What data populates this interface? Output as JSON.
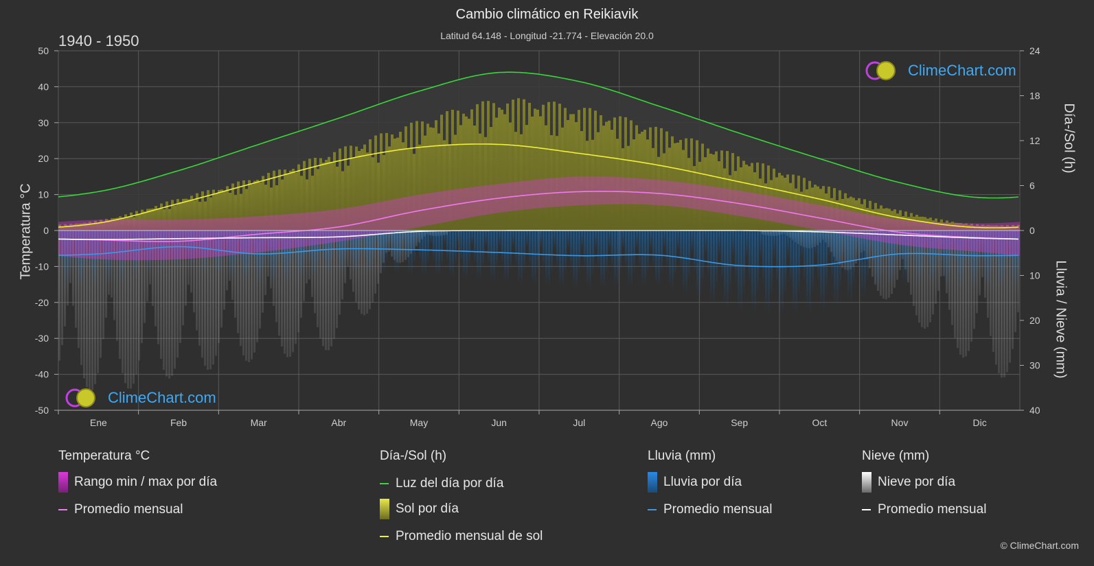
{
  "header": {
    "title": "Cambio climático en Reikiavik",
    "subtitle": "Latitud 64.148 - Longitud -21.774 - Elevación 20.0",
    "period": "1940 - 1950"
  },
  "axes": {
    "left_title": "Temperatura °C",
    "right_top_title": "Día-/Sol (h)",
    "right_bottom_title": "Lluvia / Nieve (mm)"
  },
  "logo": {
    "text": "ClimeChart.com"
  },
  "copyright": "© ClimeChart.com",
  "legend": {
    "temperature": {
      "title": "Temperatura °C",
      "range_label": "Rango min / max por día",
      "avg_label": "Promedio mensual"
    },
    "sun": {
      "title": "Día-/Sol (h)",
      "daylight_label": "Luz del día por día",
      "sun_label": "Sol por día",
      "sun_avg_label": "Promedio mensual de sol"
    },
    "rain": {
      "title": "Lluvia (mm)",
      "rain_label": "Lluvia por día",
      "avg_label": "Promedio mensual"
    },
    "snow": {
      "title": "Nieve (mm)",
      "snow_label": "Nieve por día",
      "avg_label": "Promedio mensual"
    }
  },
  "colors": {
    "background": "#2f2f2f",
    "daylight": "#39d739",
    "sun_avg": "#f0f036",
    "sun_fill": "#a8a82a",
    "temp_range": "#d83ad8",
    "temp_avg": "#f07af0",
    "rain": "#2a82d4",
    "rain_avg": "#3a9ae8",
    "snow": "#9c9c9c",
    "snow_avg": "#ffffff",
    "grid": "#5a5a5a"
  },
  "chart_data": {
    "type": "area",
    "x_label_months": [
      "Ene",
      "Feb",
      "Mar",
      "Abr",
      "May",
      "Jun",
      "Jul",
      "Ago",
      "Sep",
      "Oct",
      "Nov",
      "Dic"
    ],
    "left_axis": {
      "label": "Temperatura °C",
      "range": [
        -50,
        50
      ],
      "ticks": [
        50,
        40,
        30,
        20,
        10,
        0,
        -10,
        -20,
        -30,
        -40,
        -50
      ]
    },
    "right_top_axis": {
      "label": "Día-/Sol (h)",
      "range": [
        0,
        24
      ],
      "ticks": [
        24,
        18,
        12,
        6,
        0
      ]
    },
    "right_bottom_axis": {
      "label": "Lluvia / Nieve (mm)",
      "range": [
        0,
        40
      ],
      "ticks": [
        0,
        10,
        20,
        30,
        40
      ]
    },
    "series": [
      {
        "name": "Luz del día por día",
        "unit": "h",
        "values": [
          5.2,
          8.0,
          11.5,
          15.0,
          18.6,
          21.1,
          19.9,
          16.6,
          13.0,
          9.6,
          6.4,
          4.4
        ]
      },
      {
        "name": "Promedio mensual de sol",
        "unit": "h",
        "values": [
          1.0,
          3.6,
          6.5,
          9.3,
          11.1,
          11.5,
          10.3,
          8.7,
          6.5,
          4.2,
          1.7,
          0.4
        ]
      },
      {
        "name": "Sol por día",
        "unit": "h",
        "values": [
          1.4,
          4.4,
          7.4,
          11.0,
          14.8,
          17.6,
          16.6,
          13.7,
          10.0,
          6.3,
          2.7,
          0.8
        ]
      },
      {
        "name": "Promedio mensual",
        "metric": "temperatura",
        "unit": "°C",
        "values": [
          -2.6,
          -3.0,
          -1.0,
          1.0,
          5.5,
          9.0,
          10.8,
          10.3,
          7.5,
          3.5,
          -0.5,
          -2.0
        ]
      },
      {
        "name": "Rango min / max por día",
        "unit": "°C",
        "min": [
          -8,
          -8,
          -6,
          -3,
          1,
          5,
          7,
          7,
          4,
          0,
          -4,
          -6
        ],
        "max": [
          3,
          3,
          4,
          6,
          10,
          13,
          15,
          14,
          11,
          7,
          3,
          2
        ]
      },
      {
        "name": "Promedio mensual",
        "metric": "lluvia",
        "unit": "mm",
        "values": [
          5.2,
          3.6,
          5.2,
          4.1,
          4.3,
          4.9,
          5.6,
          5.5,
          7.8,
          7.7,
          5.2,
          5.6
        ]
      },
      {
        "name": "Promedio mensual",
        "metric": "nieve",
        "unit": "mm",
        "values": [
          2.0,
          1.8,
          1.6,
          1.4,
          0.2,
          0.0,
          0.0,
          0.0,
          0.0,
          0.3,
          1.0,
          1.7
        ]
      }
    ]
  }
}
